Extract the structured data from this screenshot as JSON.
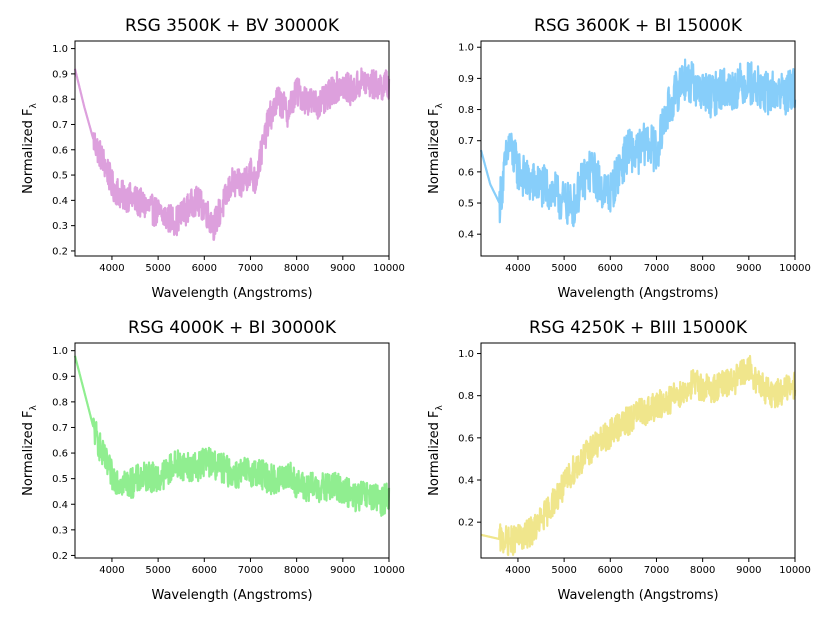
{
  "chart_data": [
    {
      "type": "line",
      "title": "RSG 3500K + BV 30000K",
      "xlabel": "Wavelength (Angstroms)",
      "ylabel": "Normalized F",
      "ylabel_sub": "λ",
      "color": "#dda0dd",
      "xlim": [
        3200,
        10000
      ],
      "ylim": [
        0.18,
        1.03
      ],
      "xticks": [
        "4000",
        "5000",
        "6000",
        "7000",
        "8000",
        "9000",
        "10000"
      ],
      "yticks": [
        "0.2",
        "0.3",
        "0.4",
        "0.5",
        "0.6",
        "0.7",
        "0.8",
        "0.9",
        "1.0"
      ],
      "x": [
        3200,
        3400,
        3600,
        3800,
        3900,
        4000,
        4200,
        4400,
        4600,
        4800,
        5000,
        5200,
        5400,
        5600,
        5800,
        6000,
        6200,
        6400,
        6600,
        6800,
        7000,
        7100,
        7200,
        7400,
        7600,
        7800,
        8000,
        8200,
        8400,
        8600,
        8800,
        9000,
        9200,
        9400,
        9600,
        9800,
        10000
      ],
      "y": [
        0.92,
        0.77,
        0.64,
        0.56,
        0.52,
        0.46,
        0.42,
        0.41,
        0.39,
        0.37,
        0.35,
        0.33,
        0.32,
        0.36,
        0.4,
        0.37,
        0.3,
        0.38,
        0.47,
        0.46,
        0.52,
        0.47,
        0.56,
        0.72,
        0.8,
        0.75,
        0.83,
        0.8,
        0.78,
        0.79,
        0.84,
        0.86,
        0.83,
        0.87,
        0.86,
        0.85,
        0.86
      ],
      "noise": 0.06
    },
    {
      "type": "line",
      "title": "RSG 3600K + BI 15000K",
      "xlabel": "Wavelength (Angstroms)",
      "ylabel": "Normalized F",
      "ylabel_sub": "λ",
      "color": "#87cefa",
      "xlim": [
        3200,
        10000
      ],
      "ylim": [
        0.33,
        1.02
      ],
      "xticks": [
        "4000",
        "5000",
        "6000",
        "7000",
        "8000",
        "9000",
        "10000"
      ],
      "yticks": [
        "0.4",
        "0.5",
        "0.6",
        "0.7",
        "0.8",
        "0.9",
        "1.0"
      ],
      "x": [
        3200,
        3400,
        3600,
        3800,
        4000,
        4200,
        4400,
        4600,
        4800,
        5000,
        5200,
        5400,
        5600,
        5800,
        6000,
        6200,
        6400,
        6600,
        6800,
        7000,
        7200,
        7400,
        7600,
        7800,
        8000,
        8200,
        8400,
        8600,
        8800,
        9000,
        9200,
        9400,
        9600,
        9800,
        10000
      ],
      "y": [
        0.67,
        0.56,
        0.5,
        0.69,
        0.61,
        0.57,
        0.56,
        0.55,
        0.53,
        0.5,
        0.49,
        0.57,
        0.61,
        0.55,
        0.53,
        0.61,
        0.67,
        0.66,
        0.7,
        0.66,
        0.78,
        0.85,
        0.9,
        0.88,
        0.86,
        0.84,
        0.87,
        0.86,
        0.88,
        0.89,
        0.87,
        0.85,
        0.86,
        0.85,
        0.87
      ],
      "noise": 0.07
    },
    {
      "type": "line",
      "title": "RSG 4000K + BI 30000K",
      "xlabel": "Wavelength (Angstroms)",
      "ylabel": "Normalized F",
      "ylabel_sub": "λ",
      "color": "#90ee90",
      "xlim": [
        3200,
        10000
      ],
      "ylim": [
        0.19,
        1.03
      ],
      "xticks": [
        "4000",
        "5000",
        "6000",
        "7000",
        "8000",
        "9000",
        "10000"
      ],
      "yticks": [
        "0.2",
        "0.3",
        "0.4",
        "0.5",
        "0.6",
        "0.7",
        "0.8",
        "0.9",
        "1.0"
      ],
      "x": [
        3200,
        3400,
        3600,
        3800,
        4000,
        4200,
        4400,
        4600,
        4800,
        5000,
        5200,
        5400,
        5600,
        5800,
        6000,
        6200,
        6400,
        6600,
        6800,
        7000,
        7200,
        7400,
        7600,
        7800,
        8000,
        8200,
        8400,
        8600,
        8800,
        9000,
        9200,
        9400,
        9600,
        9800,
        10000
      ],
      "y": [
        0.98,
        0.84,
        0.7,
        0.59,
        0.51,
        0.49,
        0.48,
        0.5,
        0.51,
        0.5,
        0.53,
        0.56,
        0.55,
        0.54,
        0.57,
        0.56,
        0.54,
        0.52,
        0.52,
        0.53,
        0.52,
        0.5,
        0.49,
        0.52,
        0.48,
        0.46,
        0.47,
        0.46,
        0.47,
        0.46,
        0.43,
        0.43,
        0.43,
        0.41,
        0.43
      ],
      "noise": 0.06
    },
    {
      "type": "line",
      "title": "RSG 4250K + BIII 15000K",
      "xlabel": "Wavelength (Angstroms)",
      "ylabel": "Normalized F",
      "ylabel_sub": "λ",
      "color": "#f0e68c",
      "xlim": [
        3200,
        10000
      ],
      "ylim": [
        0.03,
        1.05
      ],
      "xticks": [
        "4000",
        "5000",
        "6000",
        "7000",
        "8000",
        "9000",
        "10000"
      ],
      "yticks": [
        "0.2",
        "0.4",
        "0.6",
        "0.8",
        "1.0"
      ],
      "x": [
        3200,
        3400,
        3600,
        3800,
        4000,
        4200,
        4400,
        4600,
        4800,
        5000,
        5200,
        5400,
        5600,
        5800,
        6000,
        6200,
        6400,
        6600,
        6800,
        7000,
        7200,
        7400,
        7600,
        7800,
        8000,
        8200,
        8400,
        8600,
        8800,
        9000,
        9200,
        9400,
        9600,
        9800,
        10000
      ],
      "y": [
        0.14,
        0.13,
        0.12,
        0.11,
        0.12,
        0.14,
        0.18,
        0.24,
        0.31,
        0.37,
        0.45,
        0.5,
        0.55,
        0.58,
        0.62,
        0.66,
        0.68,
        0.72,
        0.73,
        0.75,
        0.77,
        0.8,
        0.82,
        0.86,
        0.84,
        0.83,
        0.85,
        0.86,
        0.89,
        0.93,
        0.86,
        0.82,
        0.81,
        0.83,
        0.85
      ],
      "noise": 0.07
    }
  ]
}
